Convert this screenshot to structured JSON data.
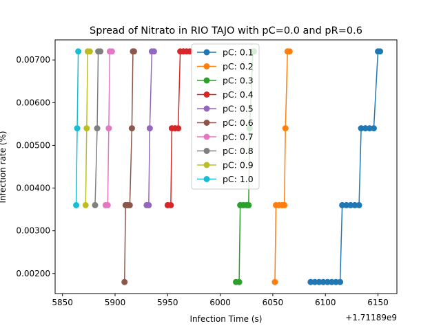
{
  "chart_data": {
    "type": "line",
    "title": "Spread of Nitrato in RIO TAJO with pC=0.0 and pR=0.6",
    "xlabel": "Infection Time (s)",
    "ylabel": "Infection rate (%)",
    "x_offset_label": "+1.71189e9",
    "xlim": [
      5843,
      6168
    ],
    "ylim": [
      0.00153,
      0.00747
    ],
    "xticks": [
      5850,
      5900,
      5950,
      6000,
      6050,
      6100,
      6150
    ],
    "yticks": [
      0.002,
      0.003,
      0.004,
      0.005,
      0.006,
      0.007
    ],
    "ytick_labels": [
      "0.00200",
      "0.00300",
      "0.00400",
      "0.00500",
      "0.00600",
      "0.00700"
    ],
    "grid": false,
    "legend_position": "upper center",
    "series": [
      {
        "name": "pC: 0.1",
        "color": "#1f77b4",
        "points": [
          [
            6086,
            0.0018
          ],
          [
            6090,
            0.0018
          ],
          [
            6094,
            0.0018
          ],
          [
            6098,
            0.0018
          ],
          [
            6102,
            0.0018
          ],
          [
            6106,
            0.0018
          ],
          [
            6110,
            0.0018
          ],
          [
            6114,
            0.0018
          ],
          [
            6116,
            0.0036
          ],
          [
            6120,
            0.0036
          ],
          [
            6124,
            0.0036
          ],
          [
            6128,
            0.0036
          ],
          [
            6132,
            0.0036
          ],
          [
            6134,
            0.0054
          ],
          [
            6138,
            0.0054
          ],
          [
            6142,
            0.0054
          ],
          [
            6146,
            0.0054
          ],
          [
            6150,
            0.0072
          ],
          [
            6152,
            0.0072
          ]
        ]
      },
      {
        "name": "pC: 0.2",
        "color": "#ff7f0e",
        "points": [
          [
            6052,
            0.0018
          ],
          [
            6053,
            0.0036
          ],
          [
            6056,
            0.0036
          ],
          [
            6059,
            0.0036
          ],
          [
            6061,
            0.0036
          ],
          [
            6062,
            0.0054
          ],
          [
            6064,
            0.0072
          ],
          [
            6066,
            0.0072
          ]
        ]
      },
      {
        "name": "pC: 0.3",
        "color": "#2ca02c",
        "points": [
          [
            6015,
            0.0018
          ],
          [
            6018,
            0.0018
          ],
          [
            6019,
            0.0036
          ],
          [
            6022,
            0.0036
          ],
          [
            6025,
            0.0036
          ],
          [
            6027,
            0.0036
          ],
          [
            6028,
            0.0054
          ],
          [
            6031,
            0.0072
          ],
          [
            6032,
            0.0072
          ]
        ]
      },
      {
        "name": "pC: 0.4",
        "color": "#d62728",
        "points": [
          [
            5950,
            0.0036
          ],
          [
            5953,
            0.0036
          ],
          [
            5954,
            0.0054
          ],
          [
            5957,
            0.0054
          ],
          [
            5960,
            0.0054
          ],
          [
            5962,
            0.0072
          ],
          [
            5965,
            0.0072
          ],
          [
            5968,
            0.0072
          ],
          [
            5971,
            0.0072
          ]
        ]
      },
      {
        "name": "pC: 0.5",
        "color": "#9467bd",
        "points": [
          [
            5930,
            0.0036
          ],
          [
            5932,
            0.0036
          ],
          [
            5933,
            0.0054
          ],
          [
            5935,
            0.0072
          ],
          [
            5937,
            0.0072
          ]
        ]
      },
      {
        "name": "pC: 0.6",
        "color": "#8c564b",
        "points": [
          [
            5909,
            0.0018
          ],
          [
            5910,
            0.0036
          ],
          [
            5912,
            0.0036
          ],
          [
            5914,
            0.0036
          ],
          [
            5916,
            0.0054
          ],
          [
            5917,
            0.0072
          ],
          [
            5918,
            0.0072
          ]
        ]
      },
      {
        "name": "pC: 0.7",
        "color": "#e377c2",
        "points": [
          [
            5891,
            0.0036
          ],
          [
            5893,
            0.0036
          ],
          [
            5894,
            0.0054
          ],
          [
            5895,
            0.0072
          ],
          [
            5897,
            0.0072
          ]
        ]
      },
      {
        "name": "pC: 0.8",
        "color": "#7f7f7f",
        "points": [
          [
            5881,
            0.0036
          ],
          [
            5883,
            0.0054
          ],
          [
            5884,
            0.0072
          ],
          [
            5886,
            0.0072
          ]
        ]
      },
      {
        "name": "pC: 0.9",
        "color": "#bcbd22",
        "points": [
          [
            5872,
            0.0036
          ],
          [
            5873,
            0.0054
          ],
          [
            5874,
            0.0072
          ],
          [
            5876,
            0.0072
          ]
        ]
      },
      {
        "name": "pC: 1.0",
        "color": "#17becf",
        "points": [
          [
            5863,
            0.0036
          ],
          [
            5864,
            0.0054
          ],
          [
            5865,
            0.0072
          ]
        ]
      }
    ]
  }
}
